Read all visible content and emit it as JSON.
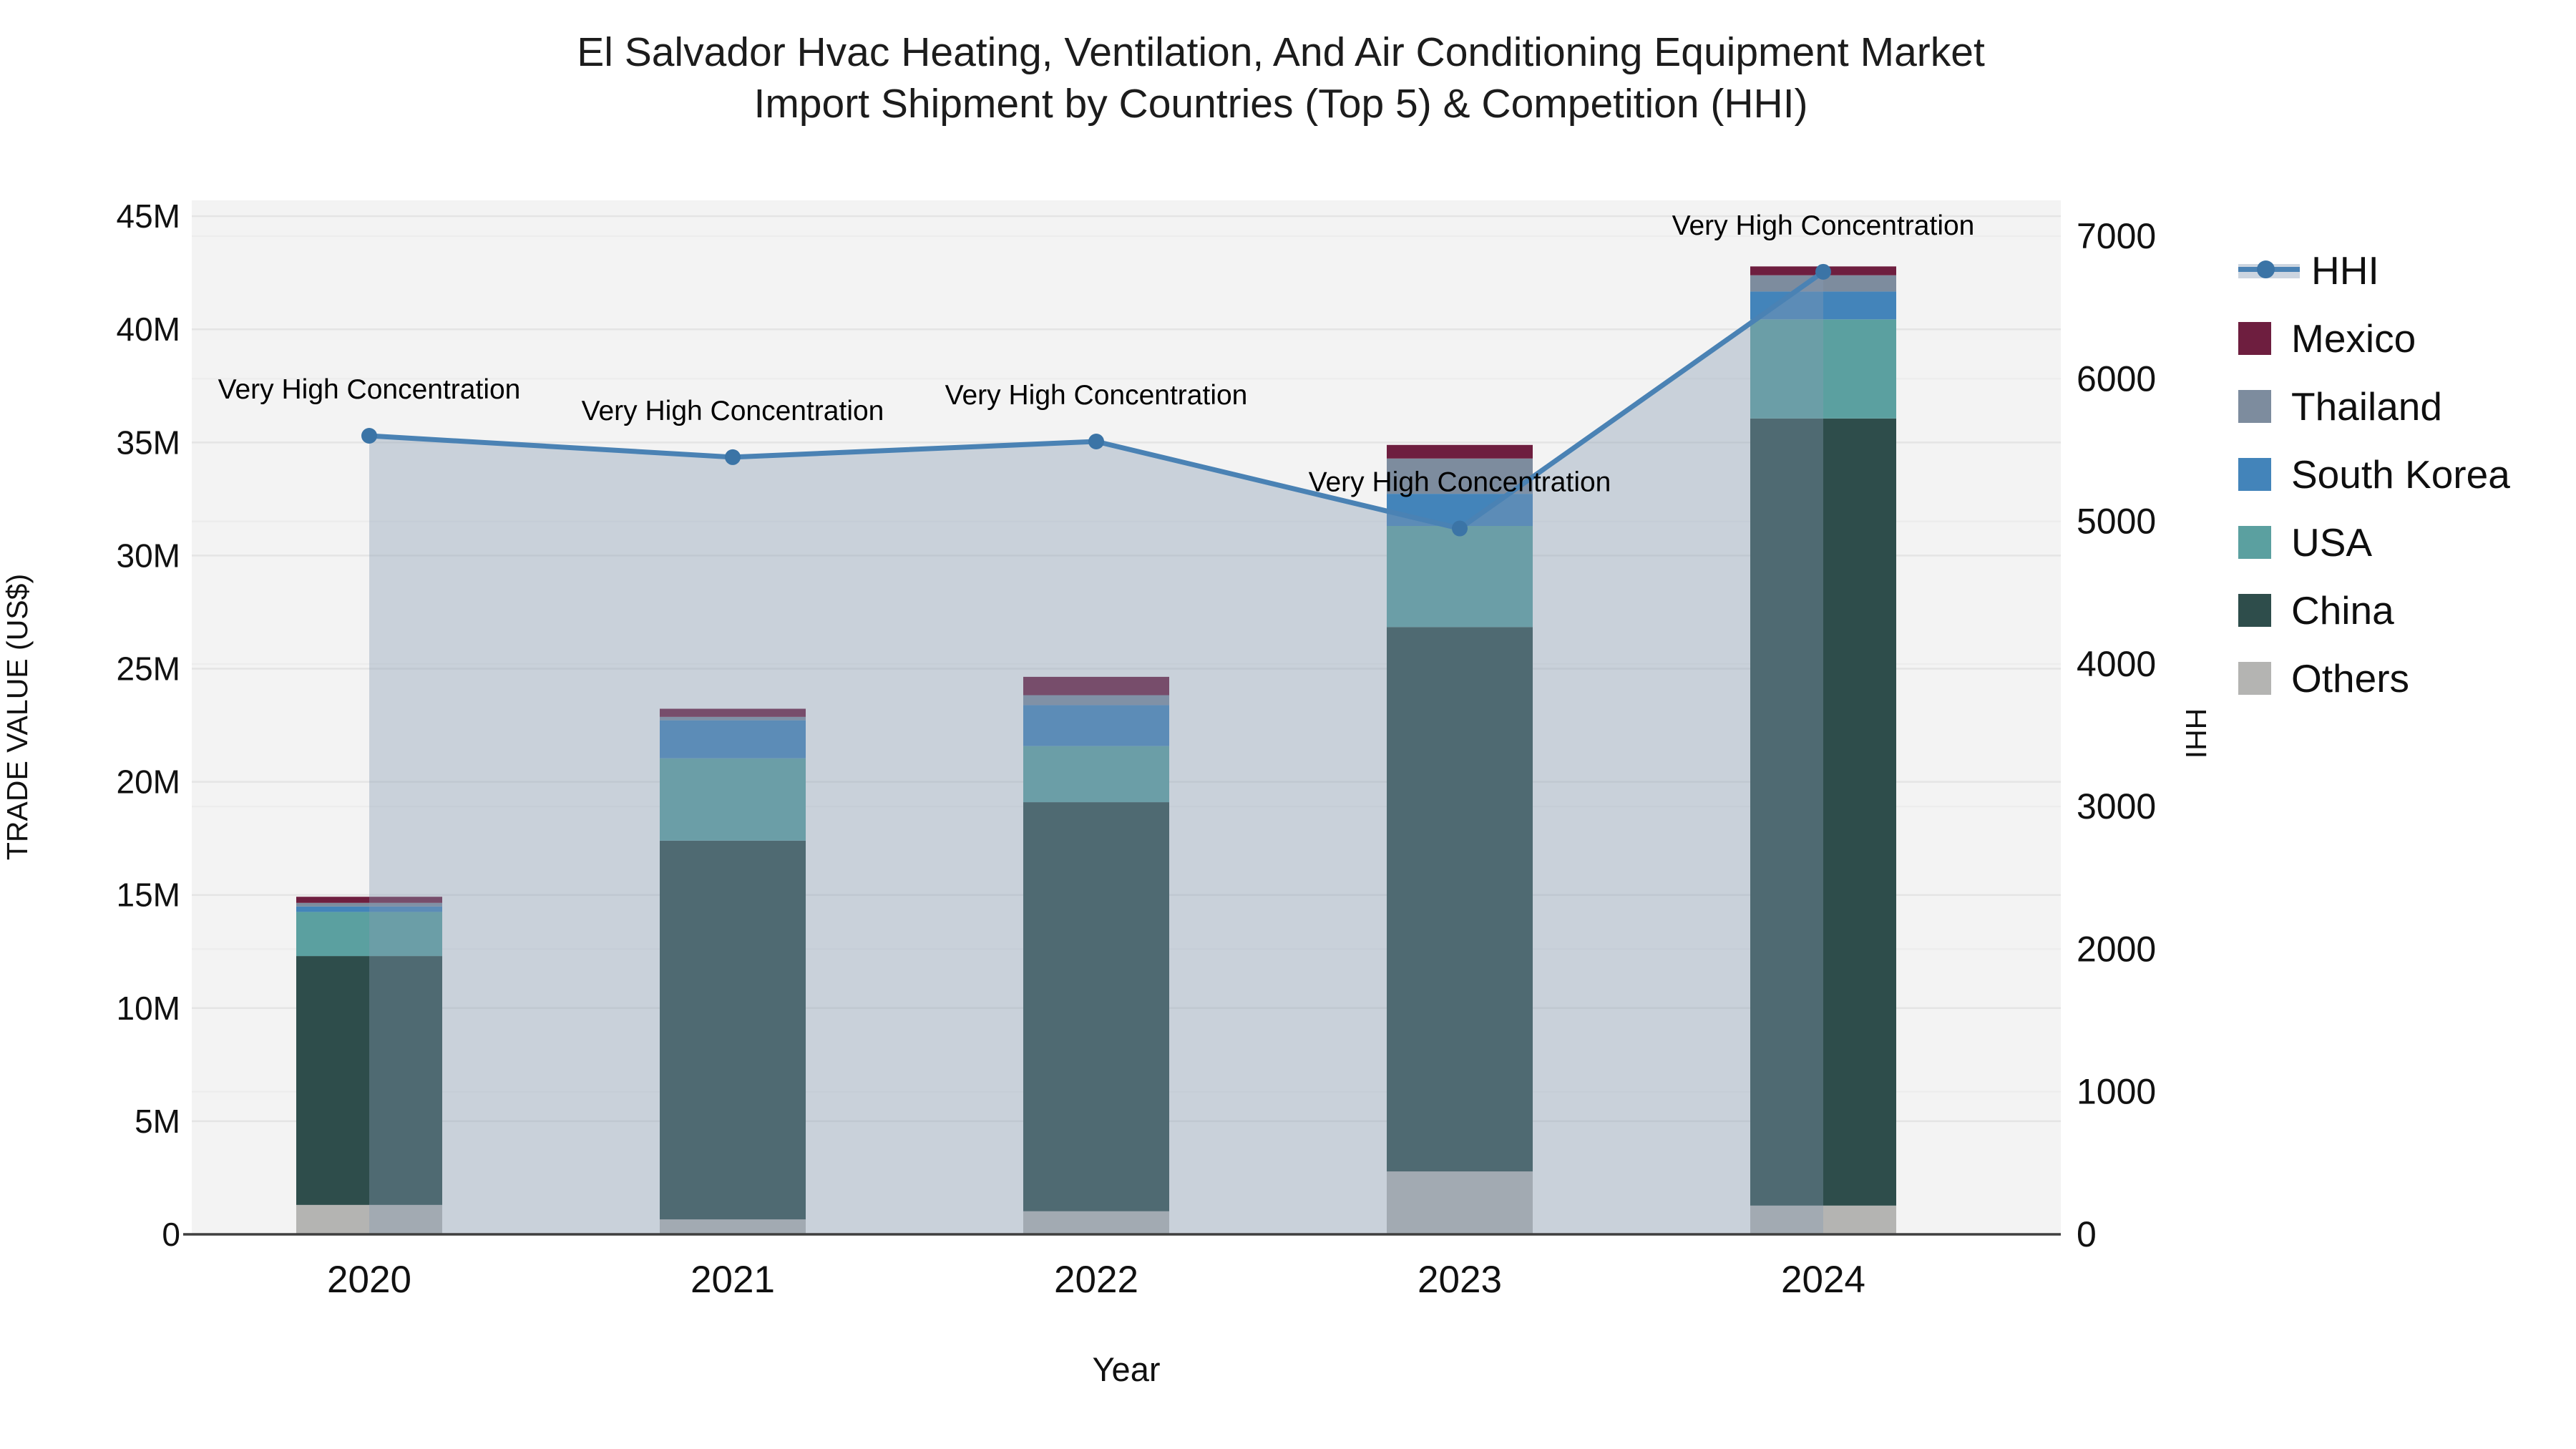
{
  "chart_data": {
    "type": "bar+line",
    "title_line1": "El Salvador Hvac Heating, Ventilation, And Air Conditioning Equipment Market",
    "title_line2": "Import Shipment by Countries (Top 5) & Competition (HHI)",
    "xlabel": "Year",
    "ylabel_left": "TRADE VALUE (US$)",
    "ylabel_right": "HHI",
    "categories": [
      "2020",
      "2021",
      "2022",
      "2023",
      "2024"
    ],
    "stacked": true,
    "series": [
      {
        "name": "Others",
        "color": "#b4b4b2",
        "values": [
          1.3,
          0.66,
          1.02,
          2.78,
          1.27
        ]
      },
      {
        "name": "China",
        "color": "#2e4d4b",
        "values": [
          11.0,
          16.74,
          18.08,
          24.06,
          34.79
        ]
      },
      {
        "name": "USA",
        "color": "#5ba0a0",
        "values": [
          1.95,
          3.64,
          2.48,
          4.47,
          4.38
        ]
      },
      {
        "name": "South Korea",
        "color": "#4384ba",
        "values": [
          0.24,
          1.68,
          1.81,
          1.42,
          1.23
        ]
      },
      {
        "name": "Thailand",
        "color": "#7d8c9e",
        "values": [
          0.16,
          0.15,
          0.44,
          1.56,
          0.72
        ]
      },
      {
        "name": "Mexico",
        "color": "#6e1e3f",
        "values": [
          0.27,
          0.36,
          0.81,
          0.6,
          0.39
        ]
      }
    ],
    "bar_totals_M": [
      14.92,
      23.23,
      24.64,
      34.89,
      42.78
    ],
    "line_series": {
      "name": "HHI",
      "axis": "right",
      "color": "#4a82b4",
      "marker_color": "#3b74a6",
      "area_fill_color": "rgba(135,155,180,0.38)",
      "values": [
        5600,
        5450,
        5560,
        4950,
        6750
      ]
    },
    "annotations": [
      {
        "x": "2020",
        "text": "Very High Concentration"
      },
      {
        "x": "2021",
        "text": "Very High Concentration"
      },
      {
        "x": "2022",
        "text": "Very High Concentration"
      },
      {
        "x": "2023",
        "text": "Very High Concentration"
      },
      {
        "x": "2024",
        "text": "Very High Concentration"
      }
    ],
    "ylim_left": [
      0,
      45.7
    ],
    "ylim_right": [
      0,
      7251
    ],
    "yticks_left": [
      "0",
      "5M",
      "10M",
      "15M",
      "20M",
      "25M",
      "30M",
      "35M",
      "40M",
      "45M"
    ],
    "yticks_right": [
      "0",
      "1000",
      "2000",
      "3000",
      "4000",
      "5000",
      "6000",
      "7000"
    ],
    "grid": true,
    "legend_position": "right",
    "units_left": "million US$"
  },
  "legend": {
    "items": [
      {
        "label": "HHI",
        "type": "line"
      },
      {
        "label": "Mexico",
        "type": "swatch",
        "color": "#6e1e3f"
      },
      {
        "label": "Thailand",
        "type": "swatch",
        "color": "#7d8c9e"
      },
      {
        "label": "South Korea",
        "type": "swatch",
        "color": "#4384ba"
      },
      {
        "label": "USA",
        "type": "swatch",
        "color": "#5ba0a0"
      },
      {
        "label": "China",
        "type": "swatch",
        "color": "#2e4d4b"
      },
      {
        "label": "Others",
        "type": "swatch",
        "color": "#b4b4b2"
      }
    ]
  },
  "colors": {
    "plot_background": "#f3f3f3",
    "grid_left": "#e4e4e4",
    "grid_right": "#ececec",
    "axis_line": "#3f3f3f",
    "tick_text": "#111111",
    "annotation_text": "#000000"
  }
}
